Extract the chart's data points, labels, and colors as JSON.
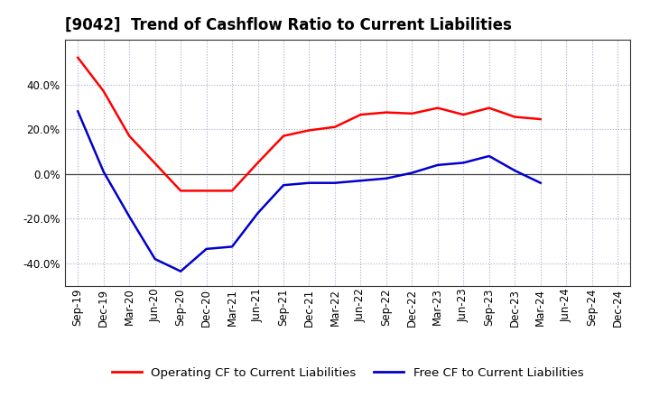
{
  "title": "[9042]  Trend of Cashflow Ratio to Current Liabilities",
  "x_labels": [
    "Sep-19",
    "Dec-19",
    "Mar-20",
    "Jun-20",
    "Sep-20",
    "Dec-20",
    "Mar-21",
    "Jun-21",
    "Sep-21",
    "Dec-21",
    "Mar-22",
    "Jun-22",
    "Sep-22",
    "Dec-22",
    "Mar-23",
    "Jun-23",
    "Sep-23",
    "Dec-23",
    "Mar-24",
    "Jun-24",
    "Sep-24",
    "Dec-24"
  ],
  "operating_cf": [
    0.52,
    0.37,
    0.17,
    null,
    -0.075,
    -0.075,
    -0.075,
    0.05,
    0.17,
    0.195,
    0.21,
    0.265,
    0.275,
    0.27,
    0.295,
    0.265,
    0.295,
    0.255,
    0.245,
    null,
    null,
    null
  ],
  "free_cf": [
    0.28,
    0.01,
    -0.19,
    -0.38,
    -0.435,
    -0.335,
    -0.325,
    -0.175,
    -0.05,
    -0.04,
    -0.04,
    -0.03,
    -0.02,
    0.005,
    0.04,
    0.05,
    0.08,
    0.015,
    -0.04,
    null,
    null,
    null
  ],
  "ylim": [
    -0.5,
    0.6
  ],
  "yticks": [
    -0.4,
    -0.2,
    0.0,
    0.2,
    0.4
  ],
  "operating_color": "#FF0000",
  "free_color": "#0000CC",
  "grid_color": "#aaaacc",
  "bg_color": "#FFFFFF",
  "plot_bg_color": "#FFFFFF",
  "legend_op": "Operating CF to Current Liabilities",
  "legend_free": "Free CF to Current Liabilities",
  "title_fontsize": 12,
  "axis_fontsize": 8.5,
  "legend_fontsize": 9.5
}
